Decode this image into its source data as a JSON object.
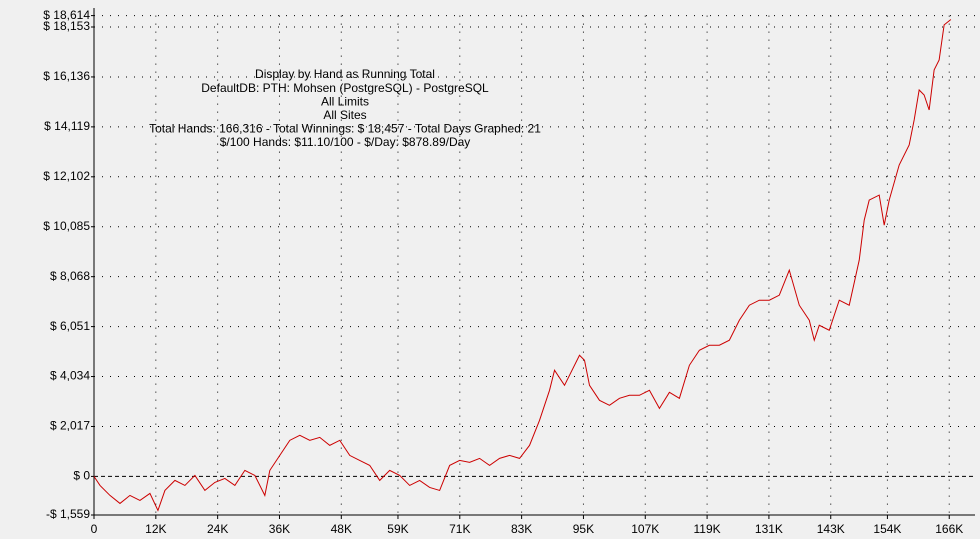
{
  "chart_data": {
    "type": "line",
    "annotations": [
      "Display by Hand as Running Total",
      "DefaultDB: PTH: Mohsen (PostgreSQL) - PostgreSQL",
      "All Limits",
      "All Sites",
      "Total Hands: 166,316 - Total Winnings: $ 18,457 - Total Days Graphed: 21",
      "$/100 Hands: $11.10/100 - $/Day: $878.89/Day"
    ],
    "color": "#cc0000",
    "grid": true,
    "xlim": [
      0,
      171000
    ],
    "ylim": [
      -1559,
      18614
    ],
    "xticks": [
      0,
      {
        "value": 12000,
        "label": "12K"
      },
      {
        "value": 24000,
        "label": "24K"
      },
      {
        "value": 36000,
        "label": "36K"
      },
      {
        "value": 48000,
        "label": "48K"
      },
      {
        "value": 59000,
        "label": "59K"
      },
      {
        "value": 71000,
        "label": "71K"
      },
      {
        "value": 83000,
        "label": "83K"
      },
      {
        "value": 95000,
        "label": "95K"
      },
      {
        "value": 107000,
        "label": "107K"
      },
      {
        "value": 119000,
        "label": "119K"
      },
      {
        "value": 131000,
        "label": "131K"
      },
      {
        "value": 143000,
        "label": "143K"
      },
      {
        "value": 154000,
        "label": "154K"
      },
      {
        "value": 166000,
        "label": "166K"
      }
    ],
    "yticks": [
      {
        "value": -1559,
        "label": "-$ 1,559"
      },
      {
        "value": 0,
        "label": "$ 0"
      },
      {
        "value": 2017,
        "label": "$ 2,017"
      },
      {
        "value": 4034,
        "label": "$ 4,034"
      },
      {
        "value": 6051,
        "label": "$ 6,051"
      },
      {
        "value": 8068,
        "label": "$ 8,068"
      },
      {
        "value": 10085,
        "label": "$ 10,085"
      },
      {
        "value": 12102,
        "label": "$ 12,102"
      },
      {
        "value": 14119,
        "label": "$ 14,119"
      },
      {
        "value": 16136,
        "label": "$ 16,136"
      },
      {
        "value": 18153,
        "label": "$ 18,153"
      },
      {
        "value": 18614,
        "label": "$ 18,614"
      }
    ],
    "x": [
      0,
      1163,
      3102,
      5041,
      6980,
      8919,
      10858,
      12410,
      13767,
      15706,
      17645,
      19584,
      21523,
      23462,
      25401,
      27340,
      29279,
      31218,
      33157,
      34126,
      36065,
      38004,
      39943,
      41882,
      43821,
      45760,
      47699,
      49638,
      51577,
      53516,
      55455,
      57394,
      59333,
      61272,
      63211,
      65150,
      67089,
      69028,
      70967,
      72906,
      74845,
      76784,
      78723,
      80662,
      82601,
      84540,
      86479,
      88418,
      89388,
      91327,
      92296,
      94235,
      95204,
      96174,
      98113,
      100052,
      101991,
      103930,
      105869,
      107808,
      109747,
      111686,
      113625,
      115564,
      117503,
      119442,
      121381,
      123320,
      125259,
      127198,
      129137,
      131076,
      133015,
      134954,
      136893,
      138832,
      139802,
      140771,
      142710,
      144649,
      146588,
      148527,
      149497,
      150466,
      152405,
      153375,
      154344,
      156283,
      158222,
      159192,
      160161,
      161131,
      162100,
      163070,
      164039,
      165009,
      166316
    ],
    "values": [
      0,
      -364,
      -768,
      -1092,
      -768,
      -971,
      -687,
      -1375,
      -566,
      -162,
      -364,
      40,
      -566,
      -243,
      -81,
      -364,
      243,
      40,
      -768,
      243,
      849,
      1456,
      1658,
      1456,
      1577,
      1254,
      1456,
      849,
      647,
      445,
      -162,
      243,
      40,
      -364,
      -162,
      -445,
      -566,
      445,
      647,
      566,
      728,
      445,
      728,
      849,
      728,
      1254,
      2265,
      3478,
      4287,
      3680,
      4084,
      4893,
      4691,
      3680,
      3073,
      2871,
      3154,
      3276,
      3276,
      3478,
      2750,
      3397,
      3154,
      4489,
      5095,
      5298,
      5298,
      5500,
      6309,
      6915,
      7117,
      7117,
      7320,
      8331,
      6915,
      6309,
      5500,
      6106,
      5904,
      7117,
      6915,
      8735,
      10353,
      11161,
      11364,
      10150,
      11161,
      12577,
      13386,
      14397,
      15610,
      15408,
      14801,
      16419,
      16823,
      18238,
      18457
    ]
  }
}
